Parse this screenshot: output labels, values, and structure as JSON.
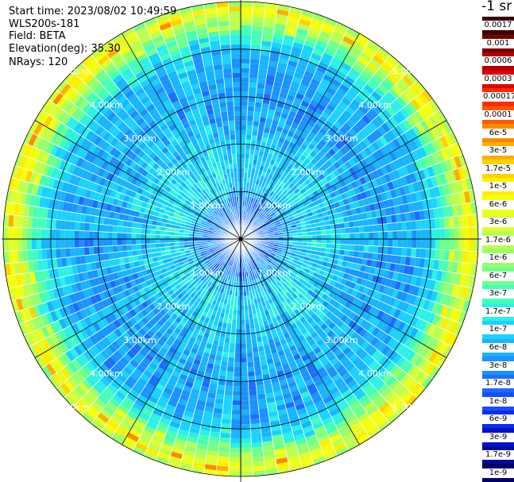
{
  "chart_data": {
    "type": "heatmap",
    "projection": "polar-ppi",
    "info": {
      "start_time": "Start time: 2023/08/02 10:49:59",
      "instrument": "WLS200s-181",
      "field": "Field: BETA",
      "elevation": "Elevation(deg): 35.30",
      "nrays": "NRays: 120"
    },
    "n_rays": 120,
    "range_rings_km": [
      1,
      2,
      3,
      4,
      5
    ],
    "ring_labels": [
      "1.00km",
      "2.00km",
      "3.00km",
      "4.00km",
      "5.00km"
    ],
    "max_range_km": 5.0,
    "azimuth_spokes_deg": [
      0,
      30,
      60,
      90,
      120,
      150,
      180,
      210,
      240,
      270,
      300,
      330
    ],
    "colorbar": {
      "title": "-1 sr",
      "scale": "log",
      "labels": [
        "0.0017",
        "0.001",
        "0.0006",
        "0.0003",
        "0.00017",
        "0.0001",
        "6e-5",
        "3e-5",
        "1.7e-5",
        "1e-5",
        "6e-6",
        "3e-6",
        "1.7e-6",
        "1e-6",
        "6e-7",
        "3e-7",
        "1.7e-7",
        "1e-7",
        "6e-8",
        "3e-8",
        "1.7e-8",
        "1e-8",
        "6e-9",
        "3e-9",
        "1.7e-9",
        "1e-9"
      ],
      "colors": [
        "#3a0000",
        "#7a0000",
        "#b00000",
        "#e00000",
        "#ff2a00",
        "#ff5a00",
        "#ff8a00",
        "#ffae00",
        "#ffd200",
        "#ffee00",
        "#f4ff10",
        "#dcff30",
        "#bcff50",
        "#96ff6e",
        "#70ff8c",
        "#46ffb6",
        "#2ef0e4",
        "#1ad2ff",
        "#18b4ff",
        "#1a92ff",
        "#1a6eff",
        "#1a4cff",
        "#0a2cf0",
        "#0014c8",
        "#000c96",
        "#000064"
      ]
    },
    "beta_profile_by_range_km": [
      {
        "range_km": 0.3,
        "level": 19.5
      },
      {
        "range_km": 0.8,
        "level": 19.0
      },
      {
        "range_km": 1.0,
        "level": 17.5
      },
      {
        "range_km": 1.4,
        "level": 16.8
      },
      {
        "range_km": 2.0,
        "level": 17.2
      },
      {
        "range_km": 2.6,
        "level": 18.2
      },
      {
        "range_km": 3.2,
        "level": 18.4
      },
      {
        "range_km": 3.8,
        "level": 18.0
      },
      {
        "range_km": 4.2,
        "level": 16.2
      },
      {
        "range_km": 4.5,
        "level": 13.5
      },
      {
        "range_km": 4.7,
        "level": 11.0
      },
      {
        "range_km": 4.85,
        "level": 10.0
      },
      {
        "range_km": 5.0,
        "level": 13.0
      }
    ]
  }
}
